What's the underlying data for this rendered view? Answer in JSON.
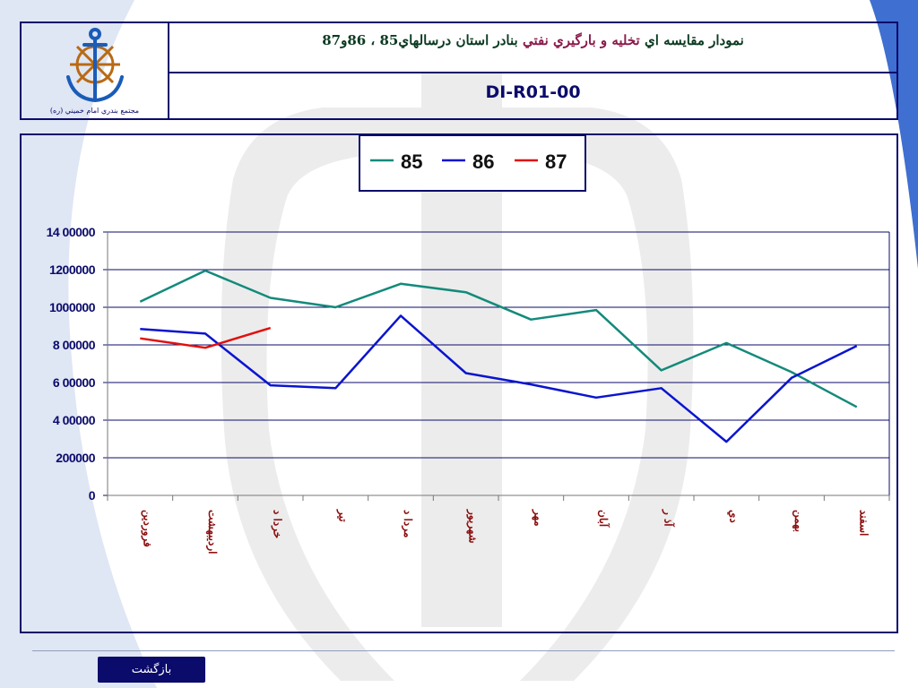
{
  "header": {
    "title_lead": "نمودار مقايسه اي",
    "title_highlight": "تخليه و بارگيري نفتي",
    "title_tail": "بنادر استان درسالهاي85 ، 86و87",
    "doc_code": "DI-R01-00",
    "logo_caption": "مجتمع بندري امام خميني (ره)"
  },
  "footer": {
    "back_label": "بازگشت"
  },
  "colors": {
    "frame": "#0b0b6b",
    "series_85": "#138a7a",
    "series_86": "#0a14cf",
    "series_87": "#e01010",
    "tick_label": "#8b0e0e"
  },
  "chart_data": {
    "type": "line",
    "title": "",
    "xlabel": "",
    "ylabel": "",
    "categories": [
      "فروردين",
      "ارديبهشت",
      "خرداد",
      "تير",
      "مرداد",
      "شهريور",
      "مهر",
      "آبان",
      "آذر",
      "دي",
      "بهمن",
      "اسفند"
    ],
    "category_labels": [
      "فروردين",
      "ارديبهشت",
      "خردا د",
      "تير",
      "مردا د",
      "شهريور",
      "مهر",
      "آبان",
      "آذ ر",
      "دي",
      "بهمن",
      "اسفند"
    ],
    "ylim": [
      0,
      1400000
    ],
    "yticks": [
      0,
      200000,
      400000,
      600000,
      800000,
      1000000,
      1200000,
      1400000
    ],
    "ytick_labels": [
      "0",
      "200000",
      "4 00000",
      "6 00000",
      "8 00000",
      "1000000",
      "1200000",
      "14 00000"
    ],
    "grid": "horizontal",
    "legend_position": "top-center",
    "series": [
      {
        "name": "85",
        "values": [
          1030000,
          1195000,
          1050000,
          1000000,
          1125000,
          1080000,
          935000,
          985000,
          665000,
          810000,
          655000,
          470000
        ]
      },
      {
        "name": "86",
        "values": [
          885000,
          860000,
          585000,
          570000,
          955000,
          650000,
          590000,
          520000,
          570000,
          285000,
          625000,
          795000
        ]
      },
      {
        "name": "87",
        "values": [
          835000,
          785000,
          890000,
          null,
          null,
          null,
          null,
          null,
          null,
          null,
          null,
          null
        ]
      }
    ]
  }
}
